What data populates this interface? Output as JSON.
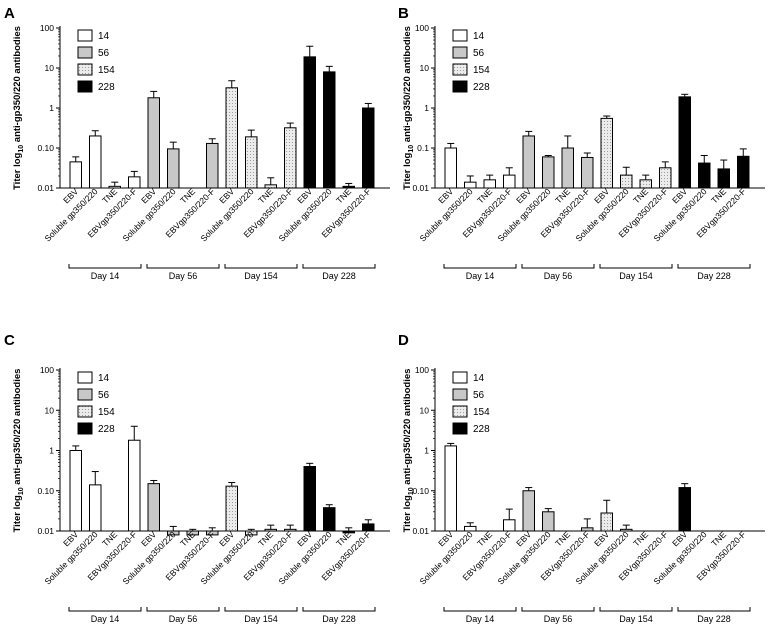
{
  "figure": {
    "panels": [
      {
        "letter": "A"
      },
      {
        "letter": "B"
      },
      {
        "letter": "C"
      },
      {
        "letter": "D"
      }
    ]
  },
  "colors": {
    "day14": "#ffffff",
    "day56": "#c8c8c8",
    "day154": "#e6e6e6",
    "day228": "#000000",
    "axis": "#000000"
  },
  "chart_data": [
    {
      "type": "bar",
      "panel": "A",
      "ylabel": "Titer log10 anti-gp350/220 antibodies",
      "yscale": "log",
      "ylim": [
        0.01,
        100
      ],
      "yticks": [
        "0.01",
        "0.10",
        "1",
        "10",
        "100"
      ],
      "categories": [
        "EBV",
        "Soluble gp350/220",
        "TNE",
        "EBVgp350/220-F"
      ],
      "groups": [
        "Day 14",
        "Day 56",
        "Day 154",
        "Day 228"
      ],
      "legend": [
        "14",
        "56",
        "154",
        "228"
      ],
      "series": [
        {
          "name": "14",
          "values": [
            0.045,
            0.2,
            0.011,
            0.019
          ],
          "errors": [
            0.06,
            0.27,
            0.014,
            0.026
          ]
        },
        {
          "name": "56",
          "values": [
            1.8,
            0.095,
            null,
            0.13
          ],
          "errors": [
            2.6,
            0.14,
            null,
            0.17
          ]
        },
        {
          "name": "154",
          "values": [
            3.2,
            0.19,
            0.012,
            0.32
          ],
          "errors": [
            4.8,
            0.28,
            0.018,
            0.42
          ]
        },
        {
          "name": "228",
          "values": [
            19,
            8,
            0.011,
            1
          ],
          "errors": [
            35,
            11,
            0.013,
            1.3
          ]
        }
      ]
    },
    {
      "type": "bar",
      "panel": "B",
      "ylabel": "Titer log10 anti-gp350/220 antibodies",
      "yscale": "log",
      "ylim": [
        0.01,
        100
      ],
      "yticks": [
        "0.01",
        "0.1",
        "1",
        "10",
        "100"
      ],
      "categories": [
        "EBV",
        "Soluble gp350/220",
        "TNE",
        "EBVgp350/220-F"
      ],
      "groups": [
        "Day 14",
        "Day 56",
        "Day 154",
        "Day 228"
      ],
      "legend": [
        "14",
        "56",
        "154",
        "228"
      ],
      "series": [
        {
          "name": "14",
          "values": [
            0.1,
            0.014,
            0.016,
            0.021
          ],
          "errors": [
            0.13,
            0.02,
            0.021,
            0.032
          ]
        },
        {
          "name": "56",
          "values": [
            0.2,
            0.06,
            0.1,
            0.058
          ],
          "errors": [
            0.26,
            0.065,
            0.2,
            0.075
          ]
        },
        {
          "name": "154",
          "values": [
            0.55,
            0.021,
            0.016,
            0.032
          ],
          "errors": [
            0.63,
            0.033,
            0.021,
            0.045
          ]
        },
        {
          "name": "228",
          "values": [
            1.9,
            0.042,
            0.03,
            0.062
          ],
          "errors": [
            2.2,
            0.065,
            0.05,
            0.095
          ]
        }
      ]
    },
    {
      "type": "bar",
      "panel": "C",
      "ylabel": "Titer log10 anti-gp350/220 antibodies",
      "yscale": "log",
      "ylim": [
        0.01,
        100
      ],
      "yticks": [
        "0.01",
        "0.10",
        "1",
        "10",
        "100"
      ],
      "categories": [
        "EBV",
        "Soluble gp350/220",
        "TNE",
        "EBVgp350/220-F"
      ],
      "groups": [
        "Day 14",
        "Day 56",
        "Day 154",
        "Day 228"
      ],
      "legend": [
        "14",
        "56",
        "154",
        "228"
      ],
      "series": [
        {
          "name": "14",
          "values": [
            1,
            0.14,
            null,
            1.8
          ],
          "errors": [
            1.3,
            0.3,
            null,
            4
          ]
        },
        {
          "name": "56",
          "values": [
            0.15,
            0.008,
            0.008,
            0.008
          ],
          "errors": [
            0.18,
            0.013,
            0.011,
            0.012
          ]
        },
        {
          "name": "154",
          "values": [
            0.13,
            0.008,
            0.011,
            0.011
          ],
          "errors": [
            0.16,
            0.011,
            0.014,
            0.014
          ]
        },
        {
          "name": "228",
          "values": [
            0.4,
            0.038,
            0.009,
            0.015
          ],
          "errors": [
            0.48,
            0.045,
            0.012,
            0.019
          ]
        }
      ]
    },
    {
      "type": "bar",
      "panel": "D",
      "ylabel": "Titer log10 anti-gp350/220 antibodies",
      "yscale": "log",
      "ylim": [
        0.01,
        100
      ],
      "yticks": [
        "0.01",
        "0.10",
        "1",
        "10",
        "100"
      ],
      "categories": [
        "EBV",
        "Soluble gp350/220",
        "TNE",
        "EBVgp350/220-F"
      ],
      "groups": [
        "Day 14",
        "Day 56",
        "Day 154",
        "Day 228"
      ],
      "legend": [
        "14",
        "56",
        "154",
        "228"
      ],
      "series": [
        {
          "name": "14",
          "values": [
            1.3,
            0.013,
            null,
            0.019
          ],
          "errors": [
            1.5,
            0.016,
            null,
            0.035
          ]
        },
        {
          "name": "56",
          "values": [
            0.1,
            0.03,
            null,
            0.012
          ],
          "errors": [
            0.12,
            0.036,
            null,
            0.02
          ]
        },
        {
          "name": "154",
          "values": [
            0.028,
            0.011,
            null,
            null
          ],
          "errors": [
            0.058,
            0.014,
            null,
            null
          ]
        },
        {
          "name": "228",
          "values": [
            0.12,
            null,
            null,
            null
          ],
          "errors": [
            0.15,
            null,
            null,
            null
          ]
        }
      ]
    }
  ]
}
